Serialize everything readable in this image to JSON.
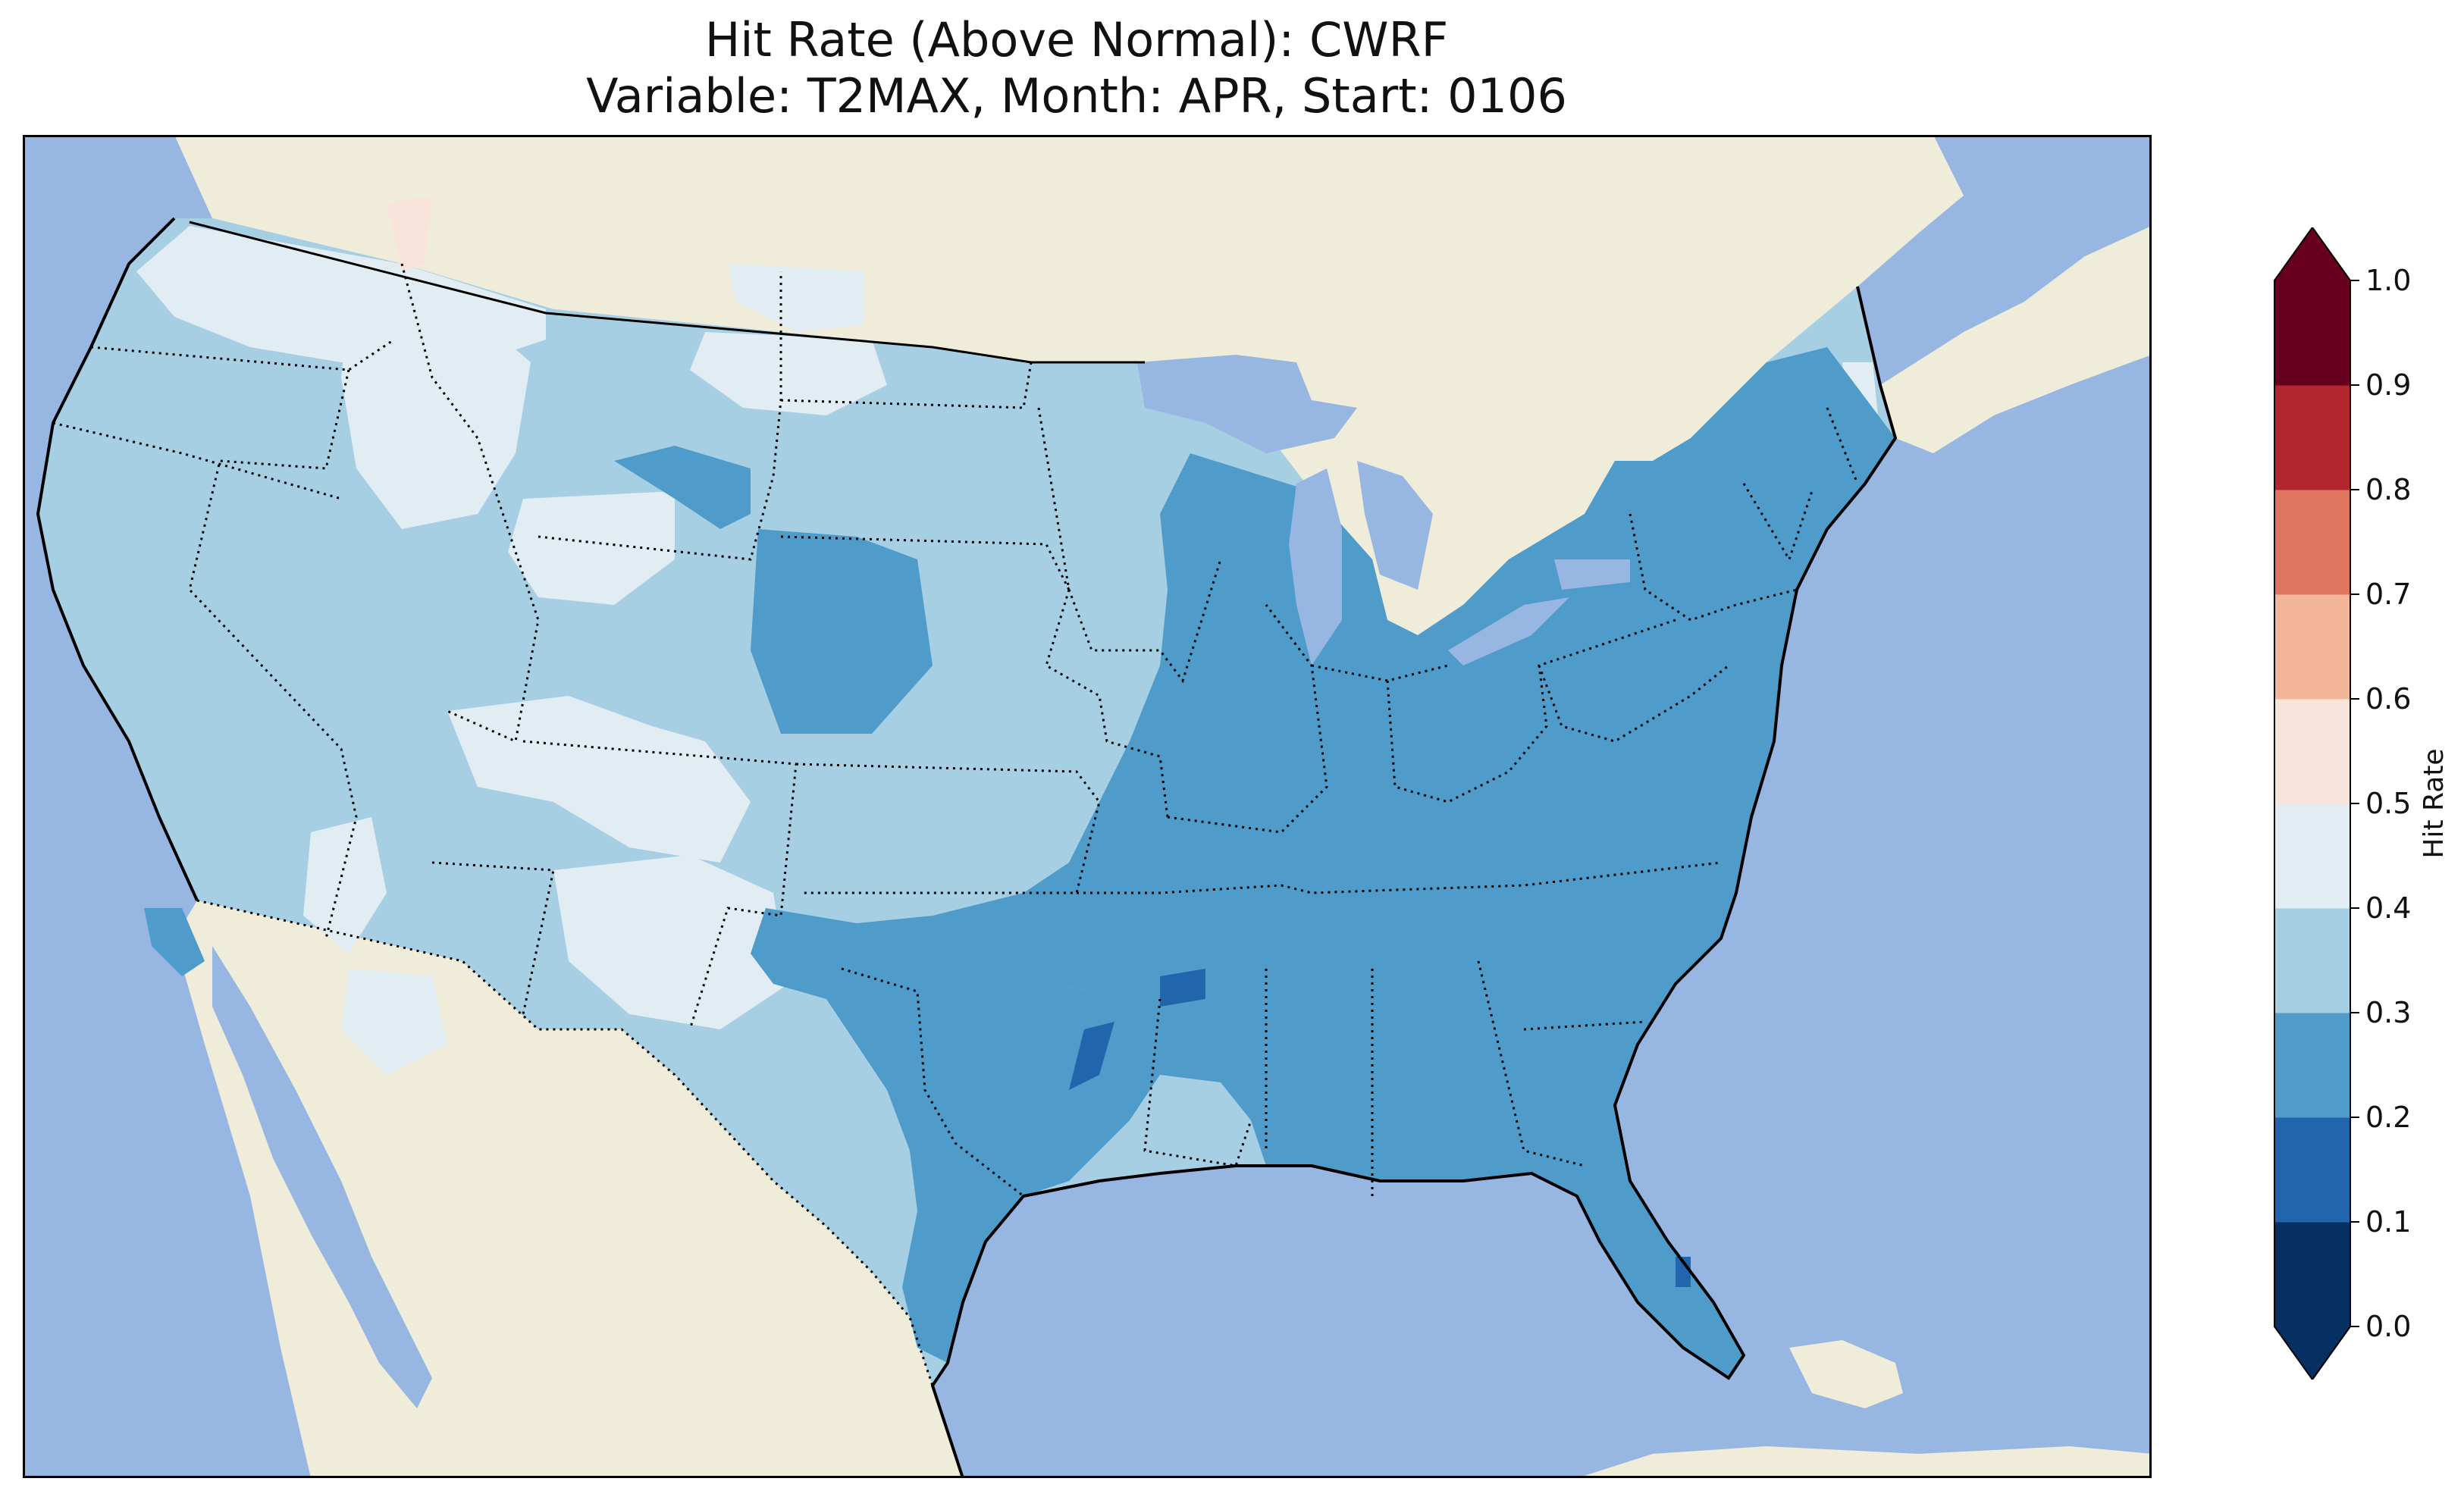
{
  "title": {
    "line1": "Hit Rate (Above Normal): CWRF",
    "line2": "Variable: T2MAX, Month: APR, Start: 0106"
  },
  "colors": {
    "ocean": "#97b6e1",
    "land": "#efedda",
    "lakes": "#97b6e1"
  },
  "colorbar": {
    "label": "Hit Rate",
    "ticks": [
      "0.0",
      "0.1",
      "0.2",
      "0.3",
      "0.4",
      "0.5",
      "0.6",
      "0.7",
      "0.8",
      "0.9",
      "1.0"
    ],
    "bins": [
      {
        "range": "0.0-0.1",
        "color": "#053061"
      },
      {
        "range": "0.1-0.2",
        "color": "#2166ac"
      },
      {
        "range": "0.2-0.3",
        "color": "#4f9bc9"
      },
      {
        "range": "0.3-0.4",
        "color": "#a7cfe4"
      },
      {
        "range": "0.4-0.5",
        "color": "#e1ecf3"
      },
      {
        "range": "0.5-0.6",
        "color": "#f8e4da"
      },
      {
        "range": "0.6-0.7",
        "color": "#f4b698"
      },
      {
        "range": "0.7-0.8",
        "color": "#de7660"
      },
      {
        "range": "0.8-0.9",
        "color": "#b4262f"
      },
      {
        "range": "0.9-1.0",
        "color": "#67001f"
      }
    ],
    "extend": "both"
  }
}
